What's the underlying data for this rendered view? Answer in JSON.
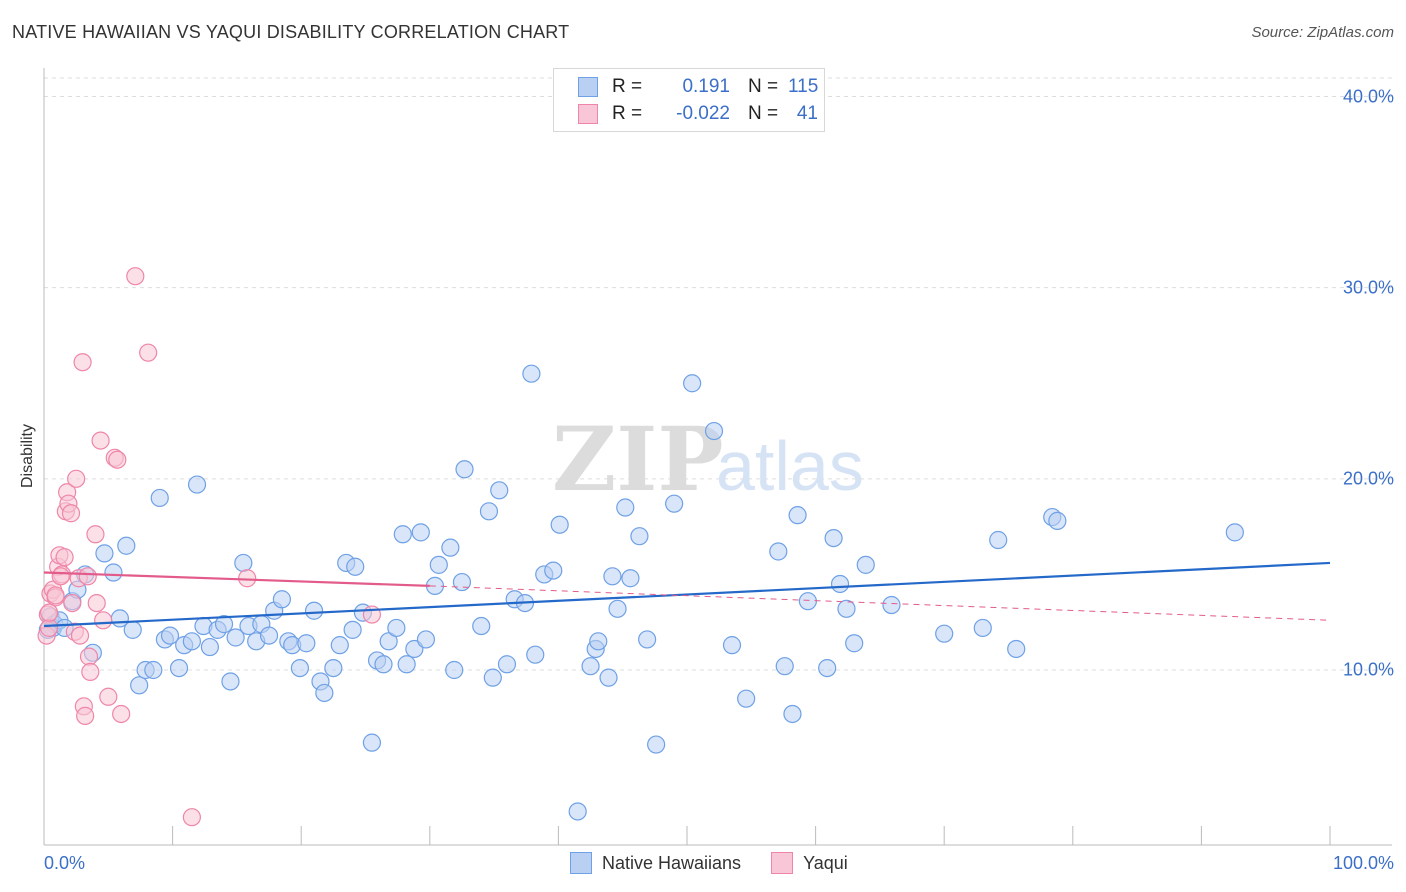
{
  "chart_data": {
    "type": "scatter",
    "title": "NATIVE HAWAIIAN VS YAQUI DISABILITY CORRELATION CHART",
    "source": "Source: ZipAtlas.com",
    "xlabel": "",
    "ylabel": "Disability",
    "xlim": [
      0,
      100
    ],
    "ylim": [
      0,
      40
    ],
    "x_tick_labels": [
      "0.0%",
      "100.0%"
    ],
    "y_ticks": [
      10,
      20,
      30,
      40
    ],
    "y_tick_labels": [
      "10.0%",
      "20.0%",
      "30.0%",
      "40.0%"
    ],
    "grid": true,
    "watermark": "ZIPatlas",
    "legend": {
      "position": "top-center",
      "rows": [
        {
          "r_label": "R =",
          "r_value": "0.191",
          "n_label": "N =",
          "n_value": "115"
        },
        {
          "r_label": "R =",
          "r_value": "-0.022",
          "n_label": "N =",
          "n_value": "41"
        }
      ]
    },
    "series": [
      {
        "name": "Native Hawaiians",
        "color": "#6fa1e6",
        "fill": "#b9d0f2",
        "trend": {
          "x0": 0,
          "y0": 12.3,
          "x1": 100,
          "y1": 15.6,
          "dashed_from": null,
          "color": "#2469c9"
        },
        "points": [
          [
            0.5,
            12.8
          ],
          [
            0.7,
            12.2
          ],
          [
            0.8,
            12.4
          ],
          [
            1.2,
            12.6
          ],
          [
            1.6,
            12.2
          ],
          [
            2.2,
            13.6
          ],
          [
            2.6,
            14.2
          ],
          [
            3.2,
            15.0
          ],
          [
            3.8,
            10.9
          ],
          [
            4.7,
            16.1
          ],
          [
            5.4,
            15.1
          ],
          [
            5.9,
            12.7
          ],
          [
            6.4,
            16.5
          ],
          [
            6.9,
            12.1
          ],
          [
            7.4,
            9.2
          ],
          [
            7.9,
            10.0
          ],
          [
            8.5,
            10.0
          ],
          [
            9.0,
            19.0
          ],
          [
            9.4,
            11.6
          ],
          [
            9.8,
            11.8
          ],
          [
            10.5,
            10.1
          ],
          [
            10.9,
            11.3
          ],
          [
            11.5,
            11.5
          ],
          [
            11.9,
            19.7
          ],
          [
            12.4,
            12.3
          ],
          [
            12.9,
            11.2
          ],
          [
            13.5,
            12.1
          ],
          [
            14.0,
            12.4
          ],
          [
            14.5,
            9.4
          ],
          [
            14.9,
            11.7
          ],
          [
            15.5,
            15.6
          ],
          [
            15.9,
            12.3
          ],
          [
            16.5,
            11.5
          ],
          [
            16.9,
            12.4
          ],
          [
            17.5,
            11.8
          ],
          [
            17.9,
            13.1
          ],
          [
            18.5,
            13.7
          ],
          [
            19.0,
            11.5
          ],
          [
            19.3,
            11.3
          ],
          [
            19.9,
            10.1
          ],
          [
            20.4,
            11.4
          ],
          [
            21.0,
            13.1
          ],
          [
            21.5,
            9.4
          ],
          [
            21.8,
            8.8
          ],
          [
            22.5,
            10.1
          ],
          [
            23.0,
            11.3
          ],
          [
            23.5,
            15.6
          ],
          [
            24.0,
            12.1
          ],
          [
            24.2,
            15.4
          ],
          [
            24.8,
            13.0
          ],
          [
            25.5,
            6.2
          ],
          [
            25.9,
            10.5
          ],
          [
            26.4,
            10.3
          ],
          [
            26.8,
            11.5
          ],
          [
            27.4,
            12.2
          ],
          [
            27.9,
            17.1
          ],
          [
            28.2,
            10.3
          ],
          [
            28.8,
            11.1
          ],
          [
            29.3,
            17.2
          ],
          [
            29.7,
            11.6
          ],
          [
            30.4,
            14.4
          ],
          [
            30.7,
            15.5
          ],
          [
            31.9,
            10.0
          ],
          [
            31.6,
            16.4
          ],
          [
            32.5,
            14.6
          ],
          [
            32.7,
            20.5
          ],
          [
            34.0,
            12.3
          ],
          [
            34.6,
            18.3
          ],
          [
            34.9,
            9.6
          ],
          [
            35.4,
            19.4
          ],
          [
            36.0,
            10.3
          ],
          [
            36.6,
            13.7
          ],
          [
            37.4,
            13.5
          ],
          [
            37.9,
            25.5
          ],
          [
            38.2,
            10.8
          ],
          [
            38.9,
            15.0
          ],
          [
            39.6,
            15.2
          ],
          [
            40.1,
            17.6
          ],
          [
            41.5,
            2.6
          ],
          [
            42.5,
            10.2
          ],
          [
            42.9,
            11.1
          ],
          [
            43.1,
            11.5
          ],
          [
            43.9,
            9.6
          ],
          [
            44.2,
            14.9
          ],
          [
            44.6,
            13.2
          ],
          [
            45.2,
            18.5
          ],
          [
            45.6,
            14.8
          ],
          [
            46.3,
            17.0
          ],
          [
            46.9,
            11.6
          ],
          [
            47.6,
            6.1
          ],
          [
            49.0,
            18.7
          ],
          [
            50.4,
            25.0
          ],
          [
            52.1,
            22.5
          ],
          [
            53.5,
            11.3
          ],
          [
            54.6,
            8.5
          ],
          [
            57.1,
            16.2
          ],
          [
            57.6,
            10.2
          ],
          [
            58.2,
            7.7
          ],
          [
            58.6,
            18.1
          ],
          [
            59.4,
            13.6
          ],
          [
            60.9,
            10.1
          ],
          [
            61.4,
            16.9
          ],
          [
            61.9,
            14.5
          ],
          [
            62.4,
            13.2
          ],
          [
            63.0,
            11.4
          ],
          [
            63.9,
            15.5
          ],
          [
            65.9,
            13.4
          ],
          [
            70.0,
            11.9
          ],
          [
            73.0,
            12.2
          ],
          [
            74.2,
            16.8
          ],
          [
            75.6,
            11.1
          ],
          [
            78.4,
            18.0
          ],
          [
            78.8,
            17.8
          ],
          [
            92.6,
            17.2
          ],
          [
            0.3,
            12.1
          ]
        ]
      },
      {
        "name": "Yaqui",
        "color": "#ef86a8",
        "fill": "#f8c6d6",
        "trend": {
          "x0": 0,
          "y0": 15.1,
          "x1": 30,
          "y1": 14.4,
          "dashed_to_x": 100,
          "dashed_to_y": 12.6,
          "color": "#e25b8a"
        },
        "points": [
          [
            0.2,
            11.8
          ],
          [
            0.3,
            12.9
          ],
          [
            0.4,
            12.2
          ],
          [
            0.5,
            14.0
          ],
          [
            0.7,
            14.2
          ],
          [
            0.9,
            13.8
          ],
          [
            1.1,
            15.4
          ],
          [
            1.2,
            16.0
          ],
          [
            1.4,
            15.0
          ],
          [
            1.6,
            15.9
          ],
          [
            1.7,
            18.3
          ],
          [
            1.8,
            19.3
          ],
          [
            1.9,
            18.7
          ],
          [
            2.1,
            18.2
          ],
          [
            2.2,
            13.5
          ],
          [
            2.4,
            12.0
          ],
          [
            2.5,
            20.0
          ],
          [
            2.7,
            14.8
          ],
          [
            2.8,
            11.8
          ],
          [
            3.0,
            26.1
          ],
          [
            3.1,
            8.1
          ],
          [
            3.2,
            7.6
          ],
          [
            3.4,
            14.9
          ],
          [
            3.5,
            10.7
          ],
          [
            3.6,
            9.9
          ],
          [
            4.0,
            17.1
          ],
          [
            4.1,
            13.5
          ],
          [
            4.4,
            22.0
          ],
          [
            4.6,
            12.6
          ],
          [
            5.0,
            8.6
          ],
          [
            5.5,
            21.1
          ],
          [
            5.7,
            21.0
          ],
          [
            6.0,
            7.7
          ],
          [
            7.1,
            30.6
          ],
          [
            8.1,
            26.6
          ],
          [
            11.5,
            2.3
          ],
          [
            15.8,
            14.8
          ],
          [
            25.5,
            12.9
          ],
          [
            0.4,
            13.0
          ],
          [
            1.3,
            14.9
          ],
          [
            0.9,
            13.9
          ]
        ]
      }
    ]
  }
}
